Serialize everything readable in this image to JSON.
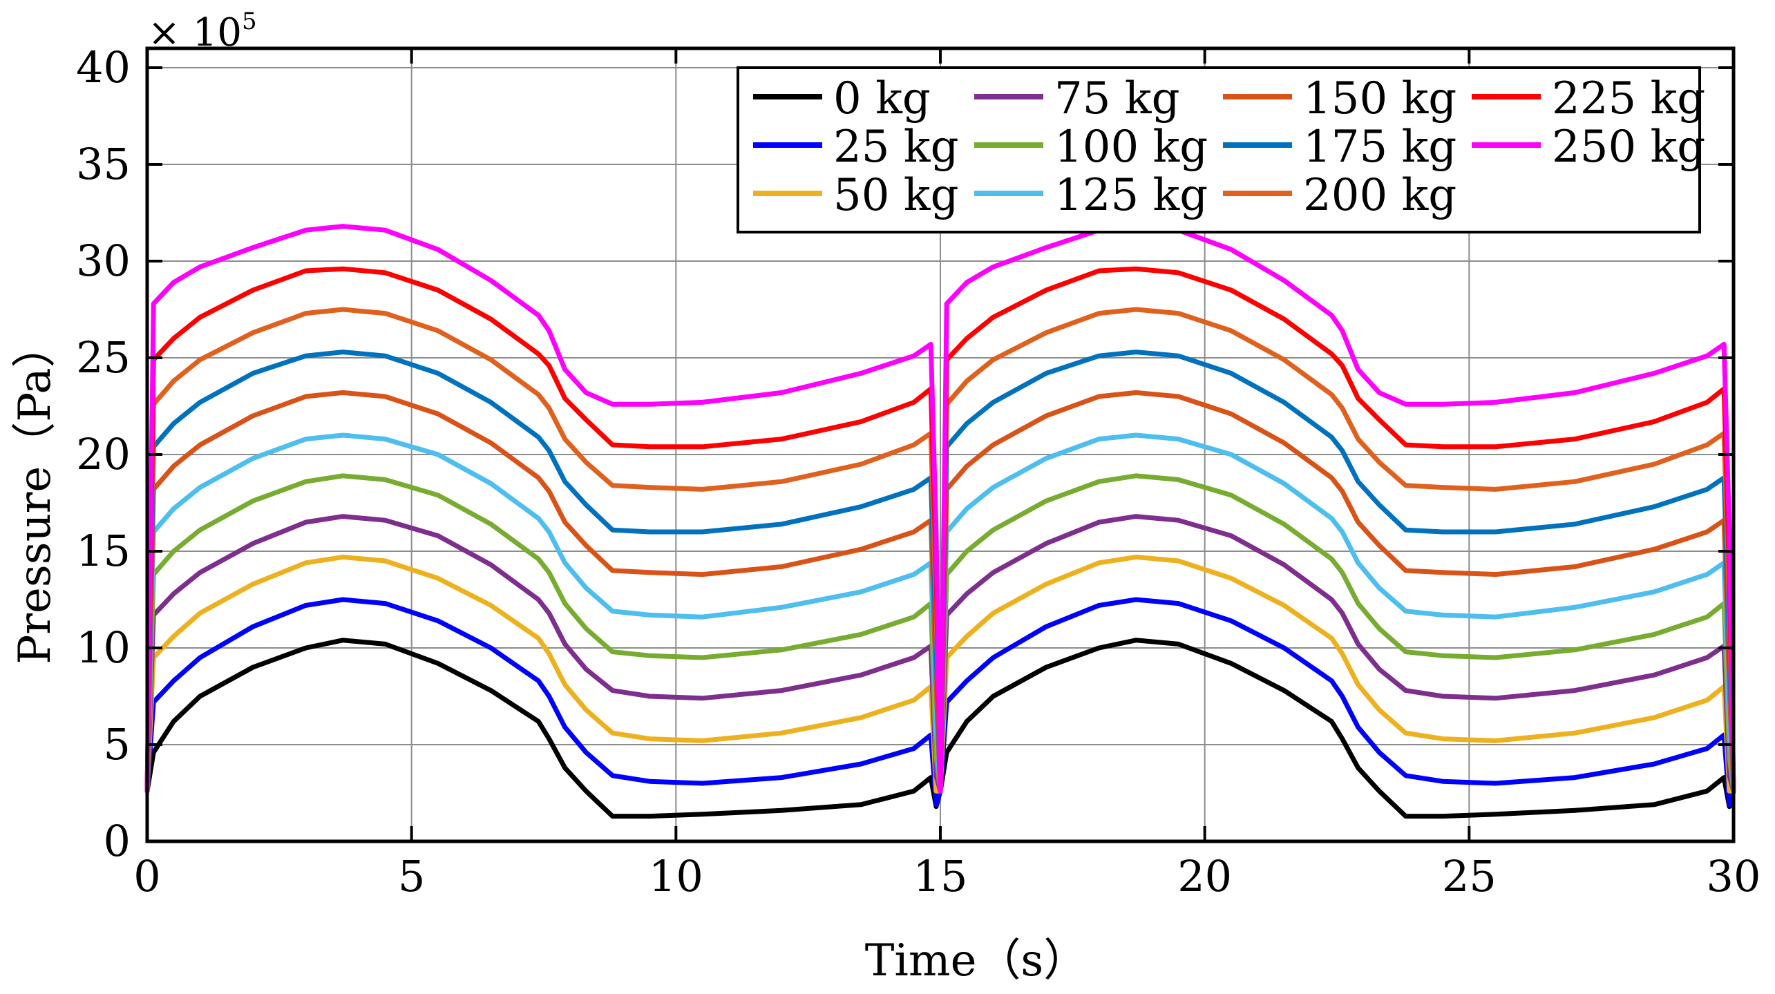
{
  "chart_data": {
    "type": "line",
    "title": "",
    "xlabel": "Time（s）",
    "ylabel": "Pressure（Pa）",
    "y_multiplier": "× 10",
    "y_multiplier_exponent": "5",
    "xlim": [
      0,
      30
    ],
    "ylim": [
      0,
      41
    ],
    "x_ticks": [
      0,
      5,
      10,
      15,
      20,
      25,
      30
    ],
    "x_tick_labels": [
      "0",
      "5",
      "10",
      "15",
      "20",
      "25",
      "30"
    ],
    "y_ticks": [
      0,
      5,
      10,
      15,
      20,
      25,
      30,
      35,
      40
    ],
    "y_tick_labels": [
      "0",
      "5",
      "10",
      "15",
      "20",
      "25",
      "30",
      "35",
      "40"
    ],
    "grid": true,
    "legend_position": "top-right",
    "legend_columns": 4,
    "period_s": 15,
    "profile_x": [
      0,
      0.12,
      0.5,
      1,
      2,
      3,
      3.7,
      4.5,
      5.5,
      6.5,
      7.4,
      7.6,
      7.9,
      8.3,
      8.8,
      9.5,
      10.5,
      12,
      13.5,
      14.5,
      14.82,
      14.92,
      15
    ],
    "series": [
      {
        "name": "0 kg",
        "color": "#000000",
        "values": [
          2.6,
          4.6,
          6.2,
          7.5,
          9.0,
          10.0,
          10.4,
          10.2,
          9.2,
          7.8,
          6.2,
          5.3,
          3.8,
          2.6,
          1.3,
          1.3,
          1.4,
          1.6,
          1.9,
          2.6,
          3.3,
          1.8,
          2.6
        ]
      },
      {
        "name": "25 kg",
        "color": "#0000ff",
        "values": [
          2.6,
          7.2,
          8.3,
          9.5,
          11.1,
          12.2,
          12.5,
          12.3,
          11.4,
          10.0,
          8.3,
          7.5,
          5.9,
          4.6,
          3.4,
          3.1,
          3.0,
          3.3,
          4.0,
          4.8,
          5.5,
          1.9,
          2.6
        ]
      },
      {
        "name": "50 kg",
        "color": "#edb120",
        "values": [
          2.6,
          9.5,
          10.6,
          11.8,
          13.3,
          14.4,
          14.7,
          14.5,
          13.6,
          12.2,
          10.5,
          9.7,
          8.1,
          6.8,
          5.6,
          5.3,
          5.2,
          5.6,
          6.4,
          7.3,
          8.0,
          2.6,
          2.6
        ]
      },
      {
        "name": "75 kg",
        "color": "#7e2f8e",
        "values": [
          2.6,
          11.7,
          12.8,
          13.9,
          15.4,
          16.5,
          16.8,
          16.6,
          15.8,
          14.3,
          12.5,
          11.8,
          10.2,
          8.9,
          7.8,
          7.5,
          7.4,
          7.8,
          8.6,
          9.5,
          10.1,
          3.4,
          2.6
        ]
      },
      {
        "name": "100 kg",
        "color": "#77ac30",
        "values": [
          2.6,
          13.8,
          15.0,
          16.1,
          17.6,
          18.6,
          18.9,
          18.7,
          17.9,
          16.4,
          14.6,
          13.9,
          12.3,
          11.0,
          9.8,
          9.6,
          9.5,
          9.9,
          10.7,
          11.6,
          12.3,
          4.4,
          2.6
        ]
      },
      {
        "name": "125 kg",
        "color": "#4dbeee",
        "values": [
          2.6,
          16.0,
          17.2,
          18.3,
          19.8,
          20.8,
          21.0,
          20.8,
          20.0,
          18.5,
          16.7,
          16.0,
          14.4,
          13.1,
          11.9,
          11.7,
          11.6,
          12.1,
          12.9,
          13.8,
          14.4,
          6.0,
          2.6
        ]
      },
      {
        "name": "150 kg",
        "color": "#d95319",
        "values": [
          2.6,
          18.2,
          19.4,
          20.5,
          22.0,
          23.0,
          23.2,
          23.0,
          22.1,
          20.6,
          18.8,
          18.1,
          16.5,
          15.3,
          14.0,
          13.9,
          13.8,
          14.2,
          15.1,
          16.0,
          16.6,
          8.0,
          2.6
        ]
      },
      {
        "name": "175 kg",
        "color": "#0072bd",
        "values": [
          2.6,
          20.4,
          21.6,
          22.7,
          24.2,
          25.1,
          25.3,
          25.1,
          24.2,
          22.7,
          20.9,
          20.2,
          18.6,
          17.4,
          16.1,
          16.0,
          16.0,
          16.4,
          17.3,
          18.2,
          18.8,
          10.0,
          2.6
        ]
      },
      {
        "name": "200 kg",
        "color": "#e0601e",
        "values": [
          2.6,
          22.6,
          23.8,
          24.9,
          26.3,
          27.3,
          27.5,
          27.3,
          26.4,
          24.9,
          23.1,
          22.4,
          20.8,
          19.6,
          18.4,
          18.3,
          18.2,
          18.6,
          19.5,
          20.5,
          21.1,
          12.0,
          2.6
        ]
      },
      {
        "name": "225 kg",
        "color": "#ff0000",
        "values": [
          2.6,
          24.9,
          26.0,
          27.1,
          28.5,
          29.5,
          29.6,
          29.4,
          28.5,
          27.0,
          25.2,
          24.6,
          22.9,
          21.8,
          20.5,
          20.4,
          20.4,
          20.8,
          21.7,
          22.7,
          23.4,
          14.0,
          2.6
        ]
      },
      {
        "name": "250 kg",
        "color": "#ff00ff",
        "values": [
          2.6,
          27.8,
          28.9,
          29.7,
          30.7,
          31.6,
          31.8,
          31.6,
          30.6,
          29.0,
          27.2,
          26.4,
          24.4,
          23.2,
          22.6,
          22.6,
          22.7,
          23.2,
          24.2,
          25.1,
          25.7,
          16.0,
          2.6
        ]
      }
    ]
  }
}
